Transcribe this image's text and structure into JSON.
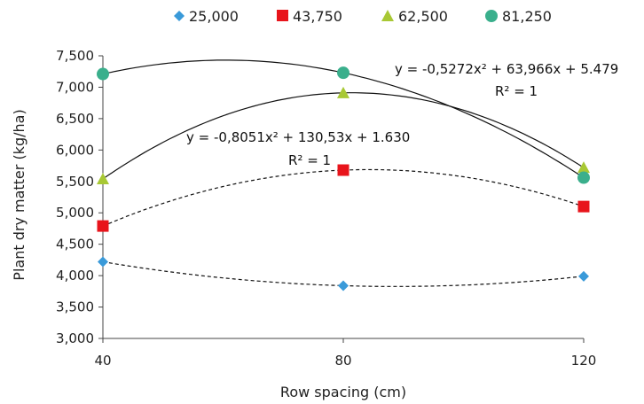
{
  "chart_data": {
    "type": "scatter",
    "xlabel": "Row spacing (cm)",
    "ylabel": "Plant dry matter (kg/ha)",
    "xlim": [
      40,
      120
    ],
    "ylim": [
      3000,
      7500
    ],
    "xticks": [
      40,
      80,
      120
    ],
    "xtick_labels": [
      "40",
      "80",
      "120"
    ],
    "yticks": [
      3000,
      3500,
      4000,
      4500,
      5000,
      5500,
      6000,
      6500,
      7000,
      7500
    ],
    "ytick_labels": [
      "3,000",
      "3,500",
      "4,000",
      "4,500",
      "5,000",
      "5,500",
      "6,000",
      "6,500",
      "7,000",
      "7,500"
    ],
    "grid": false,
    "legend_position": "top",
    "series": [
      {
        "name": "25,000",
        "marker": "diamond",
        "color": "#3a9ad9",
        "x": [
          40,
          80,
          120
        ],
        "y": [
          4220,
          3840,
          3990
        ],
        "trend": "dashed"
      },
      {
        "name": "43,750",
        "marker": "square",
        "color": "#e8141b",
        "x": [
          40,
          80,
          120
        ],
        "y": [
          4790,
          5680,
          5100
        ],
        "trend": "dashed"
      },
      {
        "name": "62,500",
        "marker": "triangle",
        "color": "#a8c834",
        "x": [
          40,
          80,
          120
        ],
        "y": [
          5540,
          6910,
          5720
        ],
        "trend": "solid"
      },
      {
        "name": "81,250",
        "marker": "circle",
        "color": "#3aaf8c",
        "x": [
          40,
          80,
          120
        ],
        "y": [
          7210,
          7230,
          5560
        ],
        "trend": "solid"
      }
    ],
    "annotations": [
      {
        "equation": "y = -0,5272x² + 63,966x + 5.479",
        "r2": "R² = 1"
      },
      {
        "equation": "y = -0,8051x² + 130,53x + 1.630",
        "r2": "R² = 1"
      }
    ]
  }
}
